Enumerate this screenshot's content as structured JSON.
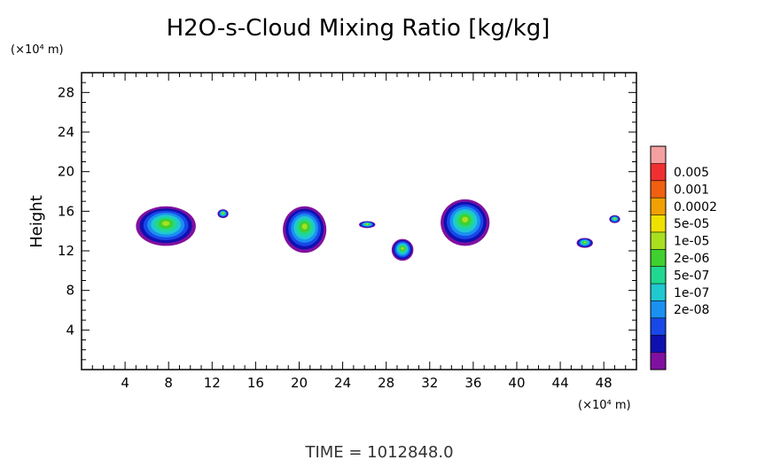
{
  "chart_data": {
    "type": "heatmap",
    "title": "H2O-s-Cloud Mixing Ratio [kg/kg]",
    "ylabel": "Height",
    "x_unit": "(×10⁴ m)",
    "y_unit": "(×10⁴ m)",
    "x_ticks": [
      "4",
      "8",
      "12",
      "16",
      "20",
      "24",
      "28",
      "32",
      "36",
      "40",
      "44",
      "48"
    ],
    "y_ticks": [
      "4",
      "8",
      "12",
      "16",
      "20",
      "24",
      "28"
    ],
    "xlim": [
      0,
      51
    ],
    "ylim": [
      0,
      30
    ],
    "colorbar": {
      "labels": [
        "0.005",
        "0.001",
        "0.0002",
        "5e-05",
        "1e-05",
        "2e-06",
        "5e-07",
        "1e-07",
        "2e-08"
      ],
      "colors": [
        "#f4a0a0",
        "#f03030",
        "#f06010",
        "#f0a000",
        "#f0e000",
        "#a8e020",
        "#40d030",
        "#20d890",
        "#20c8d0",
        "#1a90f0",
        "#1848e8",
        "#1010b0",
        "#8010a0"
      ]
    },
    "footer": "TIME = 1012848.0",
    "clouds": [
      {
        "x": [
          5.0,
          10.5
        ],
        "y": [
          12.5,
          16.5
        ]
      },
      {
        "x": [
          12.5,
          13.5
        ],
        "y": [
          15.3,
          16.2
        ]
      },
      {
        "x": [
          18.5,
          22.5
        ],
        "y": [
          11.8,
          16.5
        ]
      },
      {
        "x": [
          25.5,
          27.0
        ],
        "y": [
          14.3,
          15.0
        ]
      },
      {
        "x": [
          28.5,
          30.5
        ],
        "y": [
          11.0,
          13.2
        ]
      },
      {
        "x": [
          33.0,
          37.5
        ],
        "y": [
          12.5,
          17.2
        ]
      },
      {
        "x": [
          45.5,
          47.0
        ],
        "y": [
          12.3,
          13.3
        ]
      },
      {
        "x": [
          48.5,
          49.5
        ],
        "y": [
          14.8,
          15.6
        ]
      }
    ]
  }
}
